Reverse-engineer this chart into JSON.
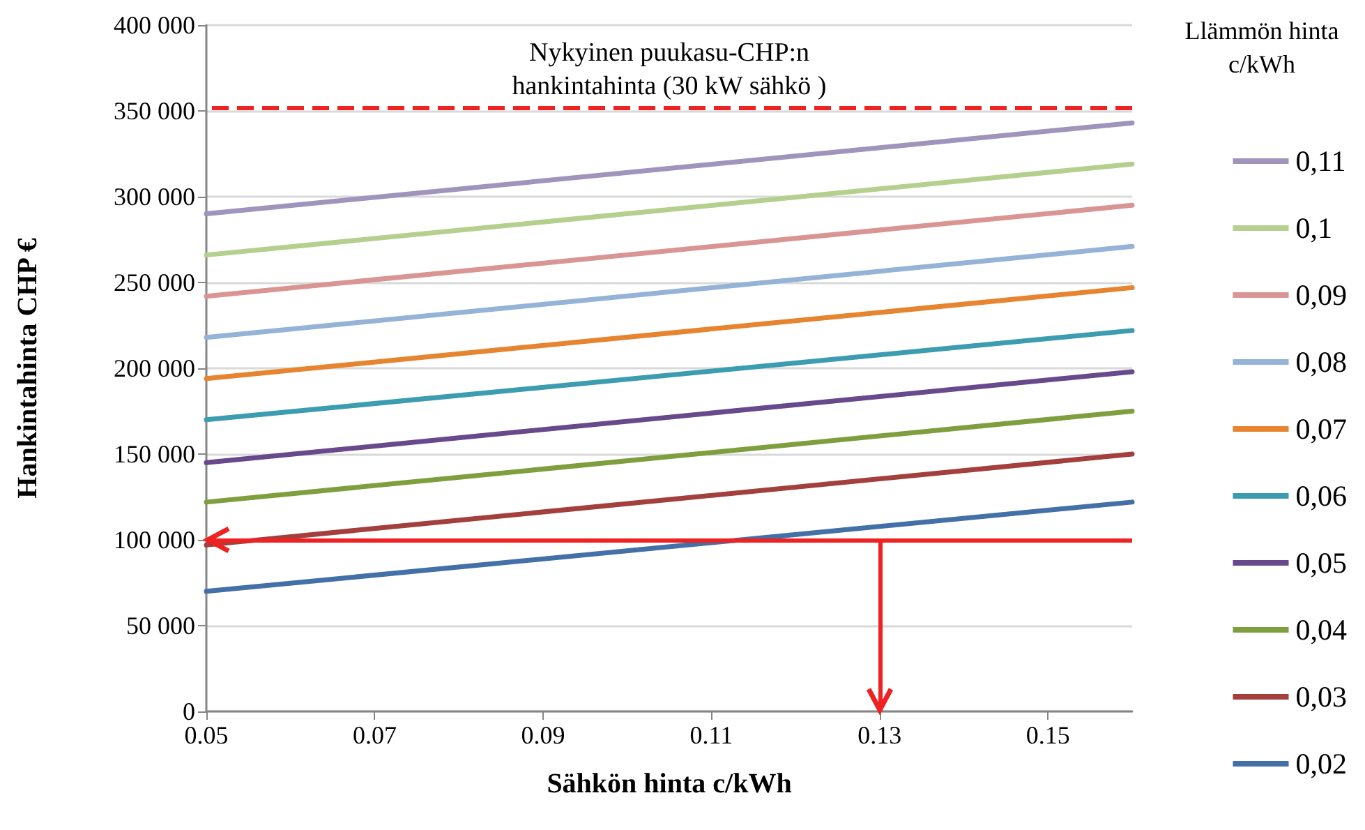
{
  "chart_data": {
    "type": "line",
    "xlabel": "Sähkön hinta c/kWh",
    "ylabel": "Hankintahinta CHP €",
    "legend_title": "Llämmön hinta\nc/kWh",
    "x": [
      0.05,
      0.16
    ],
    "series": [
      {
        "name": "0,11",
        "color": "#a094bd",
        "values": [
          290000,
          343000
        ]
      },
      {
        "name": "0,1",
        "color": "#b5cf8f",
        "values": [
          266000,
          319000
        ]
      },
      {
        "name": "0,09",
        "color": "#d99594",
        "values": [
          242000,
          295000
        ]
      },
      {
        "name": "0,08",
        "color": "#95b3d7",
        "values": [
          218000,
          271000
        ]
      },
      {
        "name": "0,07",
        "color": "#e6842f",
        "values": [
          194000,
          247000
        ]
      },
      {
        "name": "0,06",
        "color": "#3c9cb0",
        "values": [
          170000,
          222000
        ]
      },
      {
        "name": "0,05",
        "color": "#684a8c",
        "values": [
          145000,
          198000
        ]
      },
      {
        "name": "0,04",
        "color": "#7f9f3f",
        "values": [
          122000,
          175000
        ]
      },
      {
        "name": "0,03",
        "color": "#a3403e",
        "values": [
          97000,
          150000
        ]
      },
      {
        "name": "0,02",
        "color": "#4470a8",
        "values": [
          70000,
          122000
        ]
      }
    ],
    "xlim": [
      0.05,
      0.16
    ],
    "xticks": [
      0.05,
      0.07,
      0.09,
      0.11,
      0.13,
      0.15
    ],
    "ylim": [
      0,
      400000
    ],
    "yticks": [
      {
        "value": 0,
        "label": "0"
      },
      {
        "value": 50000,
        "label": "50 000"
      },
      {
        "value": 100000,
        "label": "100 000"
      },
      {
        "value": 150000,
        "label": "150 000"
      },
      {
        "value": 200000,
        "label": "200 000"
      },
      {
        "value": 250000,
        "label": "250 000"
      },
      {
        "value": 300000,
        "label": "300 000"
      },
      {
        "value": 350000,
        "label": "350 000"
      },
      {
        "value": 400000,
        "label": "400 000"
      }
    ],
    "ref_lines": [
      {
        "axis": "y",
        "value": 352000,
        "label": "Nykyinen puukasu-CHP:n\nhankintahinta (30 kW sähkö )",
        "color": "#ee2222",
        "line_style": "dashed"
      },
      {
        "axis": "y",
        "value": 100000,
        "color": "#ee2222",
        "line_style": "solid"
      },
      {
        "axis": "x",
        "value": 0.13,
        "color": "#ee2222",
        "line_style": "solid"
      }
    ],
    "grid": "y",
    "legend": "right",
    "marker": "none",
    "line_style": "solid"
  }
}
